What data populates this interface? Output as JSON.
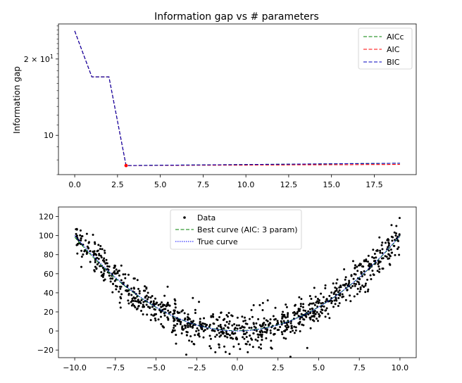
{
  "chart_data": [
    {
      "type": "line",
      "title": "Information gap vs # parameters",
      "xlabel": "",
      "ylabel": "Information gap",
      "yscale": "log",
      "xlim": [
        -0.95,
        19.95
      ],
      "ylim": [
        7.0,
        27.5
      ],
      "x_ticks": [
        0,
        2.5,
        5,
        7.5,
        10,
        12.5,
        15,
        17.5
      ],
      "x_tick_labels": [
        "0.0",
        "2.5",
        "5.0",
        "7.5",
        "10.0",
        "12.5",
        "15.0",
        "17.5"
      ],
      "y_ticks": [
        {
          "value": 10,
          "label": "10"
        },
        {
          "value": 20,
          "label_base": "2 × 10",
          "label_exp": "1"
        }
      ],
      "y_minor_ticks": [
        7,
        8,
        9,
        11,
        12,
        13,
        14,
        15,
        16,
        17,
        18,
        19,
        21,
        22,
        23,
        24,
        25,
        26,
        27
      ],
      "legend_position": "upper right",
      "x": [
        0,
        1,
        2,
        3,
        4,
        5,
        6,
        7,
        8,
        9,
        10,
        11,
        12,
        13,
        14,
        15,
        16,
        17,
        18,
        19
      ],
      "series": [
        {
          "name": "AICc",
          "color": "#008000",
          "style": "dashed",
          "values": [
            25.8,
            17.0,
            17.0,
            7.6,
            7.61,
            7.62,
            7.63,
            7.64,
            7.65,
            7.66,
            7.67,
            7.68,
            7.69,
            7.7,
            7.71,
            7.72,
            7.73,
            7.74,
            7.75,
            7.76
          ]
        },
        {
          "name": "AIC",
          "color": "#ff0000",
          "style": "dashed",
          "values": [
            25.8,
            17.0,
            17.0,
            7.6,
            7.6,
            7.61,
            7.61,
            7.62,
            7.62,
            7.63,
            7.63,
            7.64,
            7.64,
            7.65,
            7.65,
            7.66,
            7.66,
            7.67,
            7.67,
            7.68
          ]
        },
        {
          "name": "BIC",
          "color": "#0000bf",
          "style": "dashed",
          "values": [
            25.8,
            17.0,
            17.0,
            7.6,
            7.61,
            7.62,
            7.63,
            7.64,
            7.65,
            7.66,
            7.67,
            7.68,
            7.69,
            7.7,
            7.71,
            7.72,
            7.73,
            7.74,
            7.75,
            7.76
          ]
        }
      ],
      "marker": {
        "x": 3,
        "y": 7.6,
        "color": "#ff0000"
      }
    },
    {
      "type": "scatter",
      "title": "",
      "xlabel": "",
      "ylabel": "",
      "xlim": [
        -11,
        11
      ],
      "ylim": [
        -28,
        130
      ],
      "x_ticks": [
        -10,
        -7.5,
        -5,
        -2.5,
        0,
        2.5,
        5,
        7.5,
        10
      ],
      "x_tick_labels": [
        "−10.0",
        "−7.5",
        "−5.0",
        "−2.5",
        "0.0",
        "2.5",
        "5.0",
        "7.5",
        "10.0"
      ],
      "y_ticks": [
        -20,
        0,
        20,
        40,
        60,
        80,
        100,
        120
      ],
      "y_tick_labels": [
        "−20",
        "0",
        "20",
        "40",
        "60",
        "80",
        "100",
        "120"
      ],
      "legend_position": "upper center",
      "data_points": {
        "name": "Data",
        "color": "#000000",
        "n": 1000,
        "x_range": [
          -10,
          10
        ],
        "model": "y = x^2 + noise",
        "noise_sd": 9
      },
      "curves": [
        {
          "name": "Best curve (AIC: 3 param)",
          "color": "#008000",
          "style": "dashed",
          "coefficients": [
            0.3,
            0.05,
            0.985
          ]
        },
        {
          "name": "True curve",
          "color": "#0000ff",
          "style": "dotted",
          "coefficients": [
            0,
            0,
            1
          ]
        }
      ]
    }
  ]
}
